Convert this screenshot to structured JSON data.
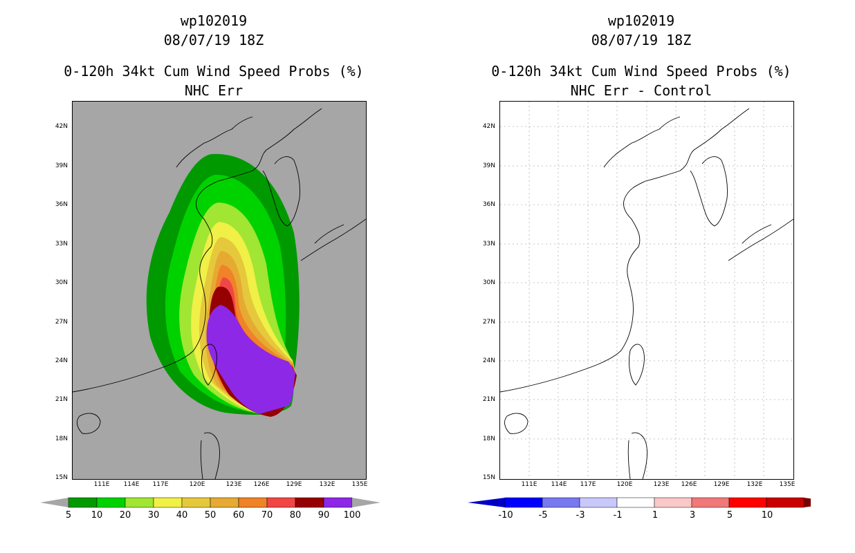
{
  "left": {
    "storm_id": "wp102019",
    "datetime": "08/07/19 18Z",
    "product": "0-120h 34kt Cum Wind Speed Probs (%)",
    "subtitle": "NHC Err",
    "colorbar": {
      "labels": [
        "5",
        "10",
        "20",
        "30",
        "40",
        "50",
        "60",
        "70",
        "80",
        "90",
        "100"
      ],
      "colors": [
        "#009a00",
        "#00d200",
        "#a0e632",
        "#f0f046",
        "#e6c83c",
        "#e6aa32",
        "#f08228",
        "#f04646",
        "#960000",
        "#8c28e6"
      ]
    }
  },
  "right": {
    "storm_id": "wp102019",
    "datetime": "08/07/19 18Z",
    "product": "0-120h 34kt Cum Wind Speed Probs (%)",
    "subtitle": "NHC Err - Control",
    "colorbar": {
      "labels": [
        "-10",
        "-5",
        "-3",
        "-1",
        "1",
        "3",
        "5",
        "10"
      ],
      "colors": [
        "#0000c8",
        "#0000ff",
        "#7878f0",
        "#c8c8fa",
        "#ffffff",
        "#fac8c8",
        "#f07878",
        "#ff0000",
        "#c80000",
        "#780000"
      ]
    }
  },
  "axes": {
    "lat_labels": [
      "42N",
      "39N",
      "36N",
      "33N",
      "30N",
      "27N",
      "24N",
      "21N",
      "18N",
      "15N"
    ],
    "lon_labels": [
      "111E",
      "114E",
      "117E",
      "120E",
      "123E",
      "126E",
      "129E",
      "132E",
      "135E"
    ]
  }
}
